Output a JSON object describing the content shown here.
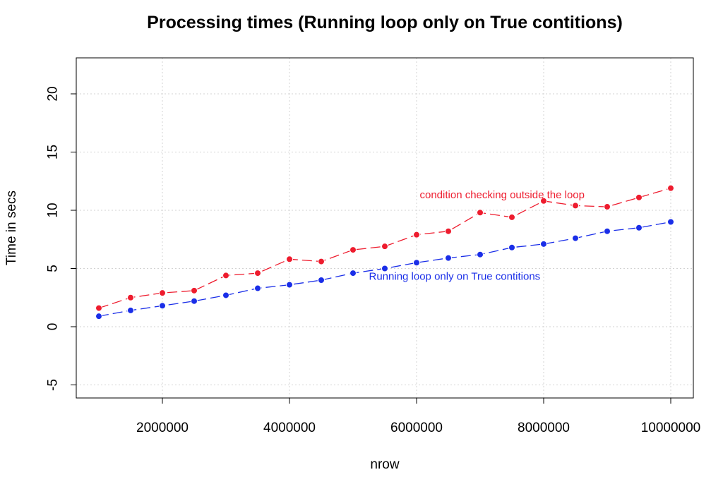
{
  "chart_data": {
    "type": "line",
    "title": "Processing times (Running loop only on True contitions)",
    "xlabel": "nrow",
    "ylabel": "Time in secs",
    "xlim": [
      1000000,
      10000000
    ],
    "ylim": [
      -5,
      22
    ],
    "x_ticks": [
      2000000,
      4000000,
      6000000,
      8000000,
      10000000
    ],
    "y_ticks": [
      -5,
      0,
      5,
      10,
      15,
      20
    ],
    "x_tick_labels": [
      "2000000",
      "4000000",
      "6000000",
      "8000000",
      "10000000"
    ],
    "y_tick_labels": [
      "-5",
      "0",
      "5",
      "10",
      "15",
      "20"
    ],
    "grid": true,
    "x": [
      1000000,
      1500000,
      2000000,
      2500000,
      3000000,
      3500000,
      4000000,
      4500000,
      5000000,
      5500000,
      6000000,
      6500000,
      7000000,
      7500000,
      8000000,
      8500000,
      9000000,
      9500000,
      10000000
    ],
    "series": [
      {
        "name": "condition checking outside the loop",
        "color": "#ee1c2e",
        "values": [
          1.6,
          2.5,
          2.9,
          3.1,
          4.4,
          4.6,
          5.8,
          5.6,
          6.6,
          6.9,
          7.9,
          8.2,
          9.8,
          9.4,
          10.8,
          10.4,
          10.3,
          11.1,
          11.9
        ]
      },
      {
        "name": "Running loop only on True contitions",
        "color": "#1a2ee8",
        "values": [
          0.9,
          1.4,
          1.8,
          2.2,
          2.7,
          3.3,
          3.6,
          4.0,
          4.6,
          5.0,
          5.5,
          5.9,
          6.2,
          6.8,
          7.1,
          7.6,
          8.2,
          8.5,
          9.0
        ]
      }
    ],
    "annotations": [
      {
        "text": "condition checking outside the loop",
        "x": 6050000,
        "y": 11.3,
        "color": "#ee1c2e"
      },
      {
        "text": "Running loop only on True contitions",
        "x": 5250000,
        "y": 4.3,
        "color": "#1a2ee8"
      }
    ]
  }
}
